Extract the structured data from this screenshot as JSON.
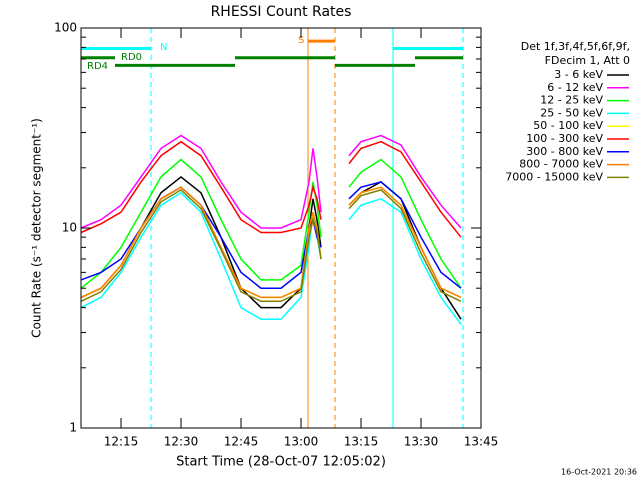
{
  "chart_data": {
    "type": "line",
    "title": "RHESSI Count Rates",
    "xlabel": "Start Time (28-Oct-07 12:05:02)",
    "ylabel": "Count Rate (s⁻¹ detector segment⁻¹)",
    "footer": "16-Oct-2021 20:36",
    "legend_header": [
      "Det 1f,3f,4f,5f,6f,9f,",
      "FDecim 1, Att 0"
    ],
    "log_y": true,
    "ylim": [
      1,
      100
    ],
    "yticks": [
      1,
      10,
      100
    ],
    "yminor_ticks": [
      2,
      3,
      4,
      5,
      6,
      7,
      8,
      9,
      20,
      30,
      40,
      50,
      60,
      70,
      80,
      90
    ],
    "xlim": [
      "12:05",
      "13:45"
    ],
    "xticks": [
      "12:15",
      "12:30",
      "12:45",
      "13:00",
      "13:15",
      "13:30",
      "13:45"
    ],
    "x": [
      "12:05",
      "12:10",
      "12:15",
      "12:20",
      "12:25",
      "12:30",
      "12:35",
      "12:40",
      "12:45",
      "12:50",
      "12:55",
      "13:00",
      "13:02",
      "13:03",
      "13:04",
      "13:05",
      "13:08",
      "13:12",
      "13:15",
      "13:20",
      "13:25",
      "13:30",
      "13:35",
      "13:40"
    ],
    "series": [
      {
        "name": "3 - 6 keV",
        "color": "#000000",
        "values": [
          4.5,
          5,
          6.5,
          10,
          15,
          18,
          15,
          9,
          5,
          4,
          4,
          5,
          10,
          14,
          11,
          8,
          null,
          13,
          15,
          17,
          14,
          8,
          5,
          3.5
        ]
      },
      {
        "name": "6 - 12 keV",
        "color": "#ff00ff",
        "values": [
          10,
          11,
          13,
          18,
          25,
          29,
          25,
          17,
          12,
          10,
          10,
          11,
          17,
          25,
          18,
          12,
          null,
          23,
          27,
          29,
          26,
          18,
          13,
          10
        ]
      },
      {
        "name": "12 - 25 keV",
        "color": "#00ff00",
        "values": [
          5,
          6,
          8,
          12,
          18,
          22,
          18,
          11,
          7,
          5.5,
          5.5,
          6.5,
          12,
          17,
          13,
          9,
          null,
          16,
          19,
          22,
          18,
          11,
          7,
          5
        ]
      },
      {
        "name": "25 - 50 keV",
        "color": "#00ffff",
        "values": [
          4,
          4.5,
          6,
          9,
          13,
          15,
          12,
          7,
          4,
          3.5,
          3.5,
          4.5,
          8,
          12,
          9,
          7,
          null,
          11,
          13,
          14,
          12,
          7,
          4.5,
          3.3
        ]
      },
      {
        "name": "50 - 100 keV",
        "color": "#ffff00",
        "values": [
          4.5,
          5,
          6.5,
          10,
          14,
          16,
          13,
          8,
          5,
          4.5,
          4.5,
          5,
          9.5,
          12,
          10,
          7,
          null,
          13,
          15,
          16,
          13,
          8,
          5,
          4.5
        ]
      },
      {
        "name": "100 - 300 keV",
        "color": "#ff0000",
        "values": [
          9.5,
          10.5,
          12,
          17,
          23,
          27,
          23,
          16,
          11,
          9.5,
          9.5,
          10,
          13,
          16,
          14,
          11,
          null,
          21,
          25,
          27,
          24,
          17,
          12,
          9
        ]
      },
      {
        "name": "300 - 800 keV",
        "color": "#0000ff",
        "values": [
          5.5,
          6,
          7,
          10,
          14,
          16,
          13,
          9,
          6,
          5,
          5,
          6,
          10,
          11,
          9,
          8,
          null,
          14,
          16,
          17,
          14,
          9,
          6,
          5
        ]
      },
      {
        "name": "800 - 7000 keV",
        "color": "#ff8000",
        "values": [
          4.5,
          5,
          6.5,
          10,
          14,
          16,
          13,
          8,
          5,
          4.5,
          4.5,
          5,
          10,
          12,
          10,
          7,
          null,
          13,
          15,
          16,
          13,
          8,
          5,
          4.5
        ]
      },
      {
        "name": "7000 - 15000 keV",
        "color": "#808000",
        "values": [
          4.3,
          4.8,
          6.2,
          9.5,
          13.5,
          15.5,
          12.5,
          7.8,
          4.8,
          4.3,
          4.3,
          4.8,
          9,
          11,
          9.5,
          7,
          null,
          12.5,
          14.5,
          15.5,
          12.5,
          7.5,
          4.8,
          4.3
        ]
      }
    ],
    "event_lines": [
      {
        "time": "12:05",
        "color": "#00ffff",
        "dashed": false
      },
      {
        "time": "12:22:30",
        "color": "#00ffff",
        "dashed": true
      },
      {
        "time": "13:01:45",
        "color": "#ff8000",
        "dashed": false
      },
      {
        "time": "13:08:30",
        "color": "#ff8000",
        "dashed": true
      },
      {
        "time": "13:23",
        "color": "#00ffff",
        "dashed": false
      },
      {
        "time": "13:40:30",
        "color": "#00ffff",
        "dashed": true
      }
    ],
    "flag_bars": [
      {
        "start": "12:05",
        "end": "12:22:30",
        "level": 79,
        "color": "#00ffff"
      },
      {
        "start": "13:23",
        "end": "13:40:30",
        "level": 79,
        "color": "#00ffff"
      },
      {
        "start": "13:01:45",
        "end": "13:08:30",
        "level": 86,
        "color": "#ff8000"
      },
      {
        "start": "12:05",
        "end": "12:13:30",
        "level": 71,
        "color": "#008000"
      },
      {
        "start": "12:43:30",
        "end": "13:08:30",
        "level": 71,
        "color": "#008000"
      },
      {
        "start": "13:28:30",
        "end": "13:40:30",
        "level": 71,
        "color": "#008000"
      },
      {
        "start": "12:13:30",
        "end": "12:43:30",
        "level": 65,
        "color": "#008000"
      },
      {
        "start": "13:08:30",
        "end": "13:28:30",
        "level": 65,
        "color": "#008000"
      }
    ],
    "flag_labels": {
      "N": "N",
      "S": "S",
      "RD0": "RD0",
      "RD4": "RD4"
    }
  }
}
